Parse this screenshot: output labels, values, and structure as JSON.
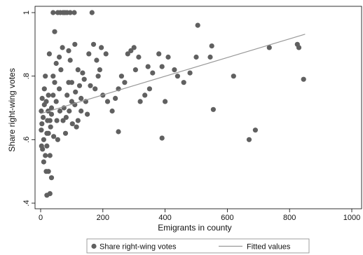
{
  "chart_data": {
    "type": "scatter",
    "xlabel": "Emigrants in county",
    "ylabel": "Share right-wing votes",
    "xlim": [
      0,
      1000
    ],
    "ylim": [
      0.4,
      1.0
    ],
    "x_ticks": [
      0,
      200,
      400,
      600,
      800,
      1000
    ],
    "y_ticks": [
      0.4,
      0.6,
      0.8,
      1.0
    ],
    "x_tick_labels": [
      "0",
      "200",
      "400",
      "600",
      "800",
      "1000"
    ],
    "y_tick_labels": [
      ".4",
      ".6",
      ".8",
      "1"
    ],
    "grid": false,
    "legend_position": "bottom",
    "colors": {
      "points": "#606060",
      "fit": "#999999"
    },
    "series": [
      {
        "name": "Share right-wing votes",
        "kind": "scatter",
        "points": [
          [
            40,
            1.0
          ],
          [
            55,
            1.0
          ],
          [
            63,
            1.0
          ],
          [
            72,
            1.0
          ],
          [
            78,
            1.0
          ],
          [
            85,
            1.0
          ],
          [
            95,
            1.0
          ],
          [
            108,
            1.0
          ],
          [
            165,
            1.0
          ],
          [
            505,
            0.96
          ],
          [
            550,
            0.895
          ],
          [
            545,
            0.86
          ],
          [
            735,
            0.89
          ],
          [
            825,
            0.9
          ],
          [
            830,
            0.89
          ],
          [
            845,
            0.79
          ],
          [
            620,
            0.8
          ],
          [
            500,
            0.86
          ],
          [
            480,
            0.81
          ],
          [
            460,
            0.78
          ],
          [
            430,
            0.82
          ],
          [
            410,
            0.86
          ],
          [
            380,
            0.87
          ],
          [
            390,
            0.83
          ],
          [
            345,
            0.83
          ],
          [
            350,
            0.76
          ],
          [
            335,
            0.74
          ],
          [
            320,
            0.72
          ],
          [
            300,
            0.89
          ],
          [
            305,
            0.82
          ],
          [
            280,
            0.87
          ],
          [
            270,
            0.78
          ],
          [
            260,
            0.8
          ],
          [
            250,
            0.76
          ],
          [
            240,
            0.73
          ],
          [
            230,
            0.69
          ],
          [
            215,
            0.72
          ],
          [
            200,
            0.74
          ],
          [
            190,
            0.82
          ],
          [
            185,
            0.8
          ],
          [
            180,
            0.85
          ],
          [
            175,
            0.76
          ],
          [
            160,
            0.77
          ],
          [
            150,
            0.68
          ],
          [
            145,
            0.72
          ],
          [
            140,
            0.79
          ],
          [
            130,
            0.69
          ],
          [
            120,
            0.66
          ],
          [
            115,
            0.64
          ],
          [
            110,
            0.71
          ],
          [
            100,
            0.72
          ],
          [
            95,
            0.85
          ],
          [
            90,
            0.78
          ],
          [
            85,
            0.74
          ],
          [
            80,
            0.62
          ],
          [
            75,
            0.7
          ],
          [
            70,
            0.89
          ],
          [
            65,
            0.82
          ],
          [
            60,
            0.76
          ],
          [
            55,
            0.6
          ],
          [
            50,
            0.72
          ],
          [
            45,
            0.94
          ],
          [
            40,
            0.8
          ],
          [
            35,
            0.68
          ],
          [
            30,
            0.55
          ],
          [
            28,
            0.87
          ],
          [
            25,
            0.74
          ],
          [
            22,
            0.66
          ],
          [
            20,
            0.62
          ],
          [
            18,
            0.5
          ],
          [
            15,
            0.8
          ],
          [
            12,
            0.71
          ],
          [
            10,
            0.6
          ],
          [
            8,
            0.67
          ],
          [
            6,
            0.57
          ],
          [
            5,
            0.73
          ],
          [
            4,
            0.65
          ],
          [
            3,
            0.58
          ],
          [
            2,
            0.63
          ],
          [
            2,
            0.69
          ],
          [
            30,
            0.43
          ],
          [
            20,
            0.425
          ],
          [
            25,
            0.5
          ],
          [
            35,
            0.48
          ],
          [
            555,
            0.695
          ],
          [
            690,
            0.63
          ],
          [
            670,
            0.6
          ],
          [
            390,
            0.605
          ],
          [
            250,
            0.625
          ],
          [
            130,
            0.73
          ],
          [
            100,
            0.78
          ],
          [
            90,
            0.88
          ],
          [
            110,
            0.9
          ],
          [
            120,
            0.82
          ],
          [
            60,
            0.86
          ],
          [
            50,
            0.84
          ],
          [
            45,
            0.78
          ],
          [
            40,
            0.74
          ],
          [
            35,
            0.7
          ],
          [
            30,
            0.66
          ],
          [
            25,
            0.62
          ],
          [
            20,
            0.58
          ],
          [
            15,
            0.55
          ],
          [
            10,
            0.53
          ],
          [
            12,
            0.76
          ],
          [
            18,
            0.72
          ],
          [
            24,
            0.69
          ],
          [
            32,
            0.64
          ],
          [
            42,
            0.61
          ],
          [
            52,
            0.66
          ],
          [
            62,
            0.69
          ],
          [
            72,
            0.66
          ],
          [
            82,
            0.67
          ],
          [
            92,
            0.69
          ],
          [
            102,
            0.65
          ],
          [
            112,
            0.75
          ],
          [
            125,
            0.77
          ],
          [
            135,
            0.81
          ],
          [
            155,
            0.87
          ],
          [
            170,
            0.9
          ],
          [
            195,
            0.89
          ],
          [
            210,
            0.87
          ],
          [
            290,
            0.88
          ],
          [
            315,
            0.86
          ],
          [
            360,
            0.81
          ],
          [
            400,
            0.72
          ],
          [
            440,
            0.8
          ]
        ]
      },
      {
        "name": "Fitted values",
        "kind": "line",
        "points": [
          [
            0,
            0.682
          ],
          [
            850,
            0.932
          ]
        ]
      }
    ]
  }
}
